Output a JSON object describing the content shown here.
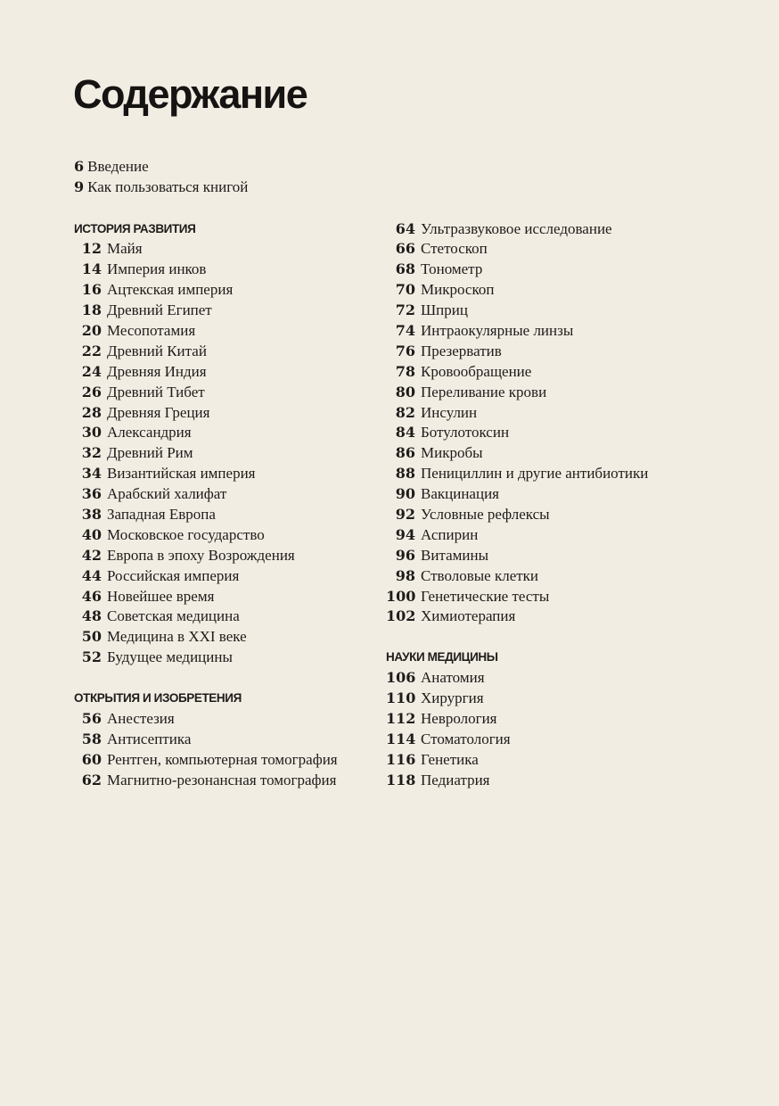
{
  "title": "Содержание",
  "intro": [
    {
      "page": "6",
      "title": "Введение"
    },
    {
      "page": "9",
      "title": "Как пользоваться книгой"
    }
  ],
  "sections": [
    {
      "heading": "ИСТОРИЯ РАЗВИТИЯ",
      "items": [
        {
          "page": "12",
          "title": "Майя"
        },
        {
          "page": "14",
          "title": "Империя инков"
        },
        {
          "page": "16",
          "title": "Ацтекская империя"
        },
        {
          "page": "18",
          "title": "Древний Египет"
        },
        {
          "page": "20",
          "title": "Месопотамия"
        },
        {
          "page": "22",
          "title": "Древний Китай"
        },
        {
          "page": "24",
          "title": "Древняя Индия"
        },
        {
          "page": "26",
          "title": "Древний Тибет"
        },
        {
          "page": "28",
          "title": "Древняя Греция"
        },
        {
          "page": "30",
          "title": "Александрия"
        },
        {
          "page": "32",
          "title": "Древний Рим"
        },
        {
          "page": "34",
          "title": "Византийская империя"
        },
        {
          "page": "36",
          "title": "Арабский халифат"
        },
        {
          "page": "38",
          "title": "Западная Европа"
        },
        {
          "page": "40",
          "title": "Московское государство"
        },
        {
          "page": "42",
          "title": "Европа в эпоху Возрождения"
        },
        {
          "page": "44",
          "title": "Российская империя"
        },
        {
          "page": "46",
          "title": "Новейшее время"
        },
        {
          "page": "48",
          "title": "Советская медицина"
        },
        {
          "page": "50",
          "title": "Медицина в XXI веке"
        },
        {
          "page": "52",
          "title": "Будущее медицины"
        }
      ]
    },
    {
      "heading": "ОТКРЫТИЯ И ИЗОБРЕТЕНИЯ",
      "items": [
        {
          "page": "56",
          "title": "Анестезия"
        },
        {
          "page": "58",
          "title": "Антисептика"
        },
        {
          "page": "60",
          "title": "Рентген, компьютерная томография"
        },
        {
          "page": "62",
          "title": "Магнитно-резонансная томография"
        },
        {
          "page": "64",
          "title": "Ультразвуковое исследование"
        },
        {
          "page": "66",
          "title": "Стетоскоп"
        },
        {
          "page": "68",
          "title": "Тонометр"
        },
        {
          "page": "70",
          "title": "Микроскоп"
        },
        {
          "page": "72",
          "title": "Шприц"
        },
        {
          "page": "74",
          "title": "Интраокулярные линзы"
        },
        {
          "page": "76",
          "title": "Презерватив"
        },
        {
          "page": "78",
          "title": "Кровообращение"
        },
        {
          "page": "80",
          "title": "Переливание крови"
        },
        {
          "page": "82",
          "title": "Инсулин"
        },
        {
          "page": "84",
          "title": "Ботулотоксин"
        },
        {
          "page": "86",
          "title": "Микробы"
        },
        {
          "page": "88",
          "title": "Пенициллин и другие антибиотики"
        },
        {
          "page": "90",
          "title": "Вакцинация"
        },
        {
          "page": "92",
          "title": "Условные рефлексы"
        },
        {
          "page": "94",
          "title": "Аспирин"
        },
        {
          "page": "96",
          "title": "Витамины"
        },
        {
          "page": "98",
          "title": "Стволовые клетки"
        },
        {
          "page": "100",
          "title": "Генетические тесты"
        },
        {
          "page": "102",
          "title": "Химиотерапия"
        }
      ]
    },
    {
      "heading": "НАУКИ МЕДИЦИНЫ",
      "items": [
        {
          "page": "106",
          "title": "Анатомия"
        },
        {
          "page": "110",
          "title": "Хирургия"
        },
        {
          "page": "112",
          "title": "Неврология"
        },
        {
          "page": "114",
          "title": "Стоматология"
        },
        {
          "page": "116",
          "title": "Генетика"
        },
        {
          "page": "118",
          "title": "Педиатрия"
        }
      ]
    }
  ]
}
